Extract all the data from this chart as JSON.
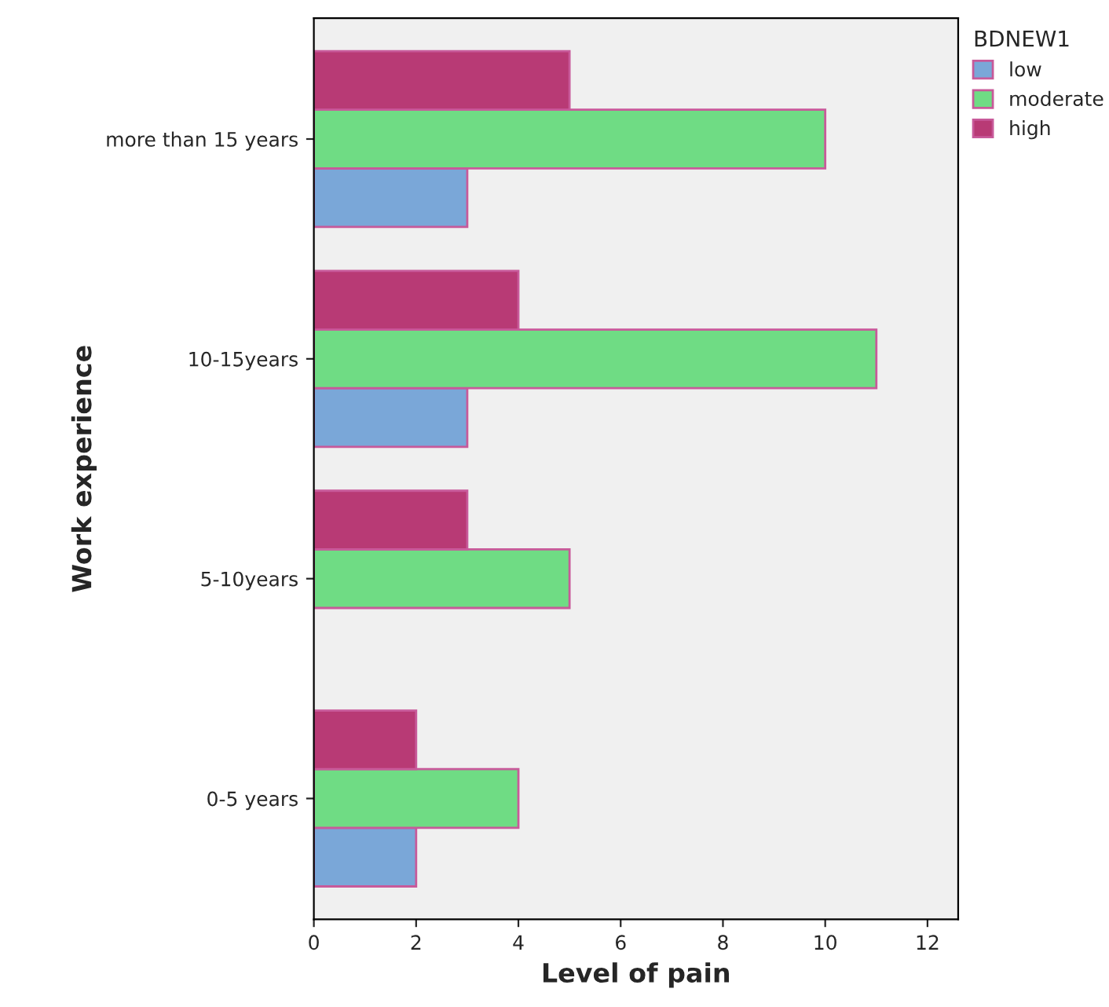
{
  "chart_data": {
    "type": "bar",
    "orientation": "horizontal",
    "xlabel": "Level of pain",
    "ylabel": "Work experience",
    "legend_title": "BDNEW1",
    "categories": [
      "more than 15 years",
      "10-15years",
      "5-10years",
      "0-5 years"
    ],
    "series": [
      {
        "name": "low",
        "color": "#7aa7d8",
        "values": [
          3,
          3,
          null,
          2
        ]
      },
      {
        "name": "moderate",
        "color": "#6fdc84",
        "values": [
          10,
          11,
          5,
          4
        ]
      },
      {
        "name": "high",
        "color": "#b83a75",
        "values": [
          5,
          4,
          3,
          2
        ]
      }
    ],
    "xlim": [
      0,
      12.6
    ],
    "xticks": [
      0,
      2,
      4,
      6,
      8,
      10,
      12
    ],
    "grid": false,
    "legend": "top right"
  }
}
